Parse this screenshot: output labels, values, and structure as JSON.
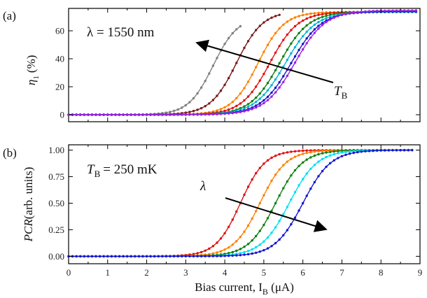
{
  "chart_data": [
    {
      "panel_label": "(a)",
      "type": "line",
      "ylabel": "η₁ (%)",
      "ylabel_main": "η",
      "ylabel_sub": "1",
      "ylabel_unit": "(%)",
      "xlim": [
        0,
        9
      ],
      "ylim": [
        -5,
        76
      ],
      "yticks": [
        0,
        20,
        40,
        60
      ],
      "grid": false,
      "annotations": [
        {
          "text": "λ = 1550 nm"
        },
        {
          "text_main": "T",
          "text_sub": "B"
        }
      ],
      "series": [
        {
          "color": "#808080",
          "x0": 3.7,
          "k": 3.2,
          "ymax": 70,
          "xmax": 4.4
        },
        {
          "color": "#7b1a1a",
          "x0": 4.3,
          "k": 3.0,
          "ymax": 74,
          "xmax": 5.4
        },
        {
          "color": "#ff8000",
          "x0": 4.85,
          "k": 3.0,
          "ymax": 73.5,
          "xmax": 8.9
        },
        {
          "color": "#e01010",
          "x0": 5.15,
          "k": 2.8,
          "ymax": 73.5,
          "xmax": 8.9
        },
        {
          "color": "#108010",
          "x0": 5.4,
          "k": 2.7,
          "ymax": 73.5,
          "xmax": 8.9
        },
        {
          "color": "#00b4d8",
          "x0": 5.55,
          "k": 2.6,
          "ymax": 73.5,
          "xmax": 8.9
        },
        {
          "color": "#1515d0",
          "x0": 5.7,
          "k": 2.6,
          "ymax": 73.8,
          "xmax": 8.9
        },
        {
          "color": "#a020e0",
          "x0": 5.8,
          "k": 2.6,
          "ymax": 74.5,
          "xmax": 8.9
        }
      ]
    },
    {
      "panel_label": "(b)",
      "type": "line",
      "ylabel_main": "PCR",
      "ylabel_unit": "(arb. units)",
      "xlabel_main": "Bias current, I",
      "xlabel_sub": "B",
      "xlabel_unit": " (μA)",
      "xlim": [
        0,
        9
      ],
      "ylim": [
        -0.07,
        1.05
      ],
      "xticks": [
        0,
        1,
        2,
        3,
        4,
        5,
        6,
        7,
        8,
        9
      ],
      "yticks": [
        "0.00",
        "0.25",
        "0.50",
        "0.75",
        "1.00"
      ],
      "grid": false,
      "annotations": [
        {
          "text": "= 250 mK",
          "text_main": "T",
          "text_sub": "B"
        },
        {
          "text": "λ"
        }
      ],
      "series": [
        {
          "color": "#e01010",
          "x0": 4.4,
          "k": 3.2,
          "ymax": 1.0,
          "xmax": 8.8
        },
        {
          "color": "#ff8000",
          "x0": 4.9,
          "k": 3.0,
          "ymax": 1.0,
          "xmax": 8.8
        },
        {
          "color": "#108010",
          "x0": 5.3,
          "k": 2.9,
          "ymax": 1.0,
          "xmax": 8.8
        },
        {
          "color": "#00e0f0",
          "x0": 5.65,
          "k": 2.8,
          "ymax": 1.0,
          "xmax": 8.8
        },
        {
          "color": "#1515d0",
          "x0": 6.0,
          "k": 2.8,
          "ymax": 1.0,
          "xmax": 8.8
        }
      ]
    }
  ]
}
